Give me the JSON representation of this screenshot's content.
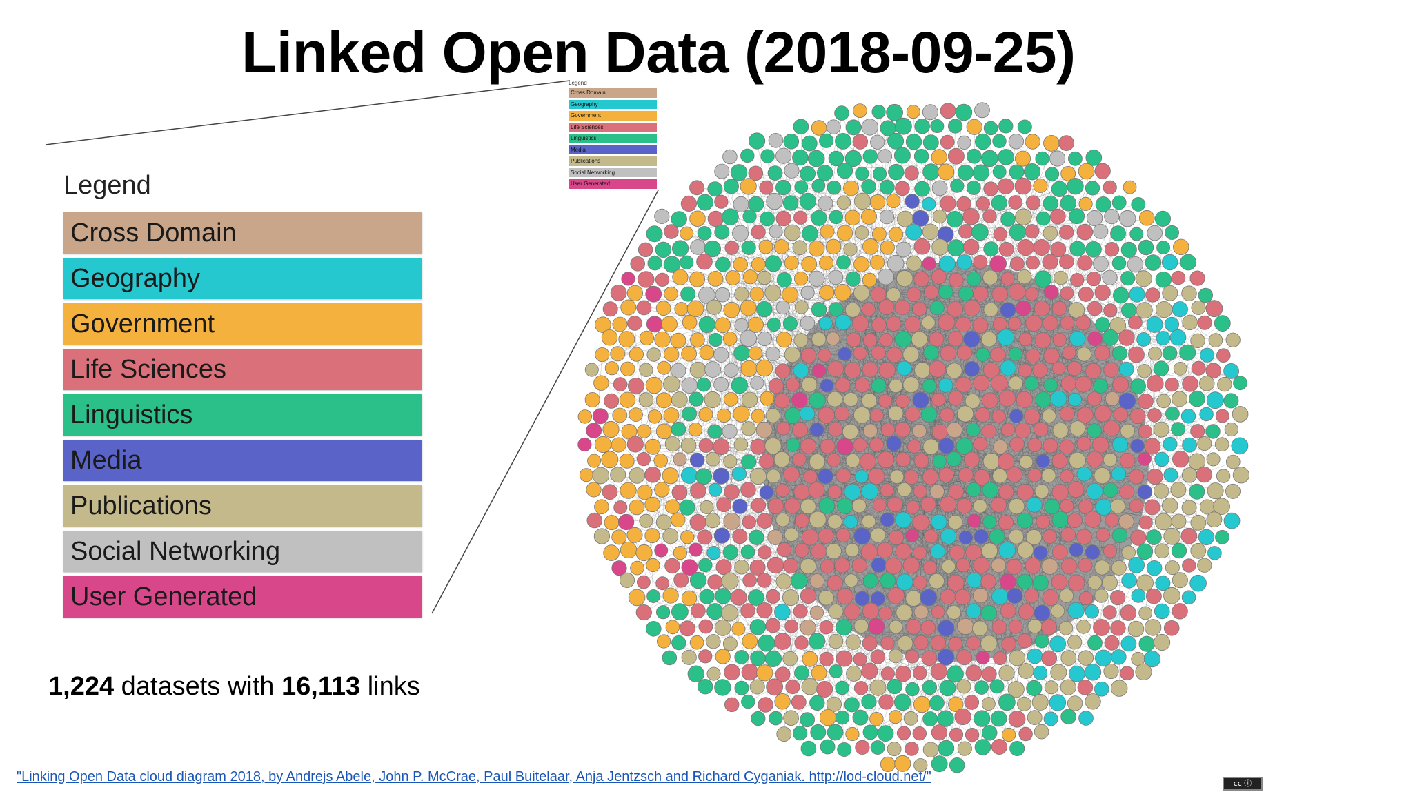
{
  "slide": {
    "title": "Linked Open Data (2018-09-25)"
  },
  "legend": {
    "heading": "Legend",
    "items": [
      {
        "label": "Cross Domain",
        "color": "#c9a68a"
      },
      {
        "label": "Geography",
        "color": "#26c8d0"
      },
      {
        "label": "Government",
        "color": "#f5b13d"
      },
      {
        "label": "Life Sciences",
        "color": "#d9707a"
      },
      {
        "label": "Linguistics",
        "color": "#2bbf8a"
      },
      {
        "label": "Media",
        "color": "#5a63c8"
      },
      {
        "label": "Publications",
        "color": "#c4b98a"
      },
      {
        "label": "Social Networking",
        "color": "#c0c0c0"
      },
      {
        "label": "User Generated",
        "color": "#d8478a"
      }
    ]
  },
  "stats": {
    "datasets": "1,224",
    "middle": " datasets with ",
    "links": "16,113",
    "suffix": " links"
  },
  "credit": {
    "text": "\"Linking Open Data cloud diagram 2018, by Andrejs Abele, John P. McCrae, Paul Buitelaar, Anja Jentzsch and Richard Cyganiak. http://lod-cloud.net/\""
  },
  "license_badge": {
    "text": "cc ⓘ"
  },
  "cloud": {
    "background_link_color": "#6e6e6e",
    "node_stroke": "#777777"
  }
}
